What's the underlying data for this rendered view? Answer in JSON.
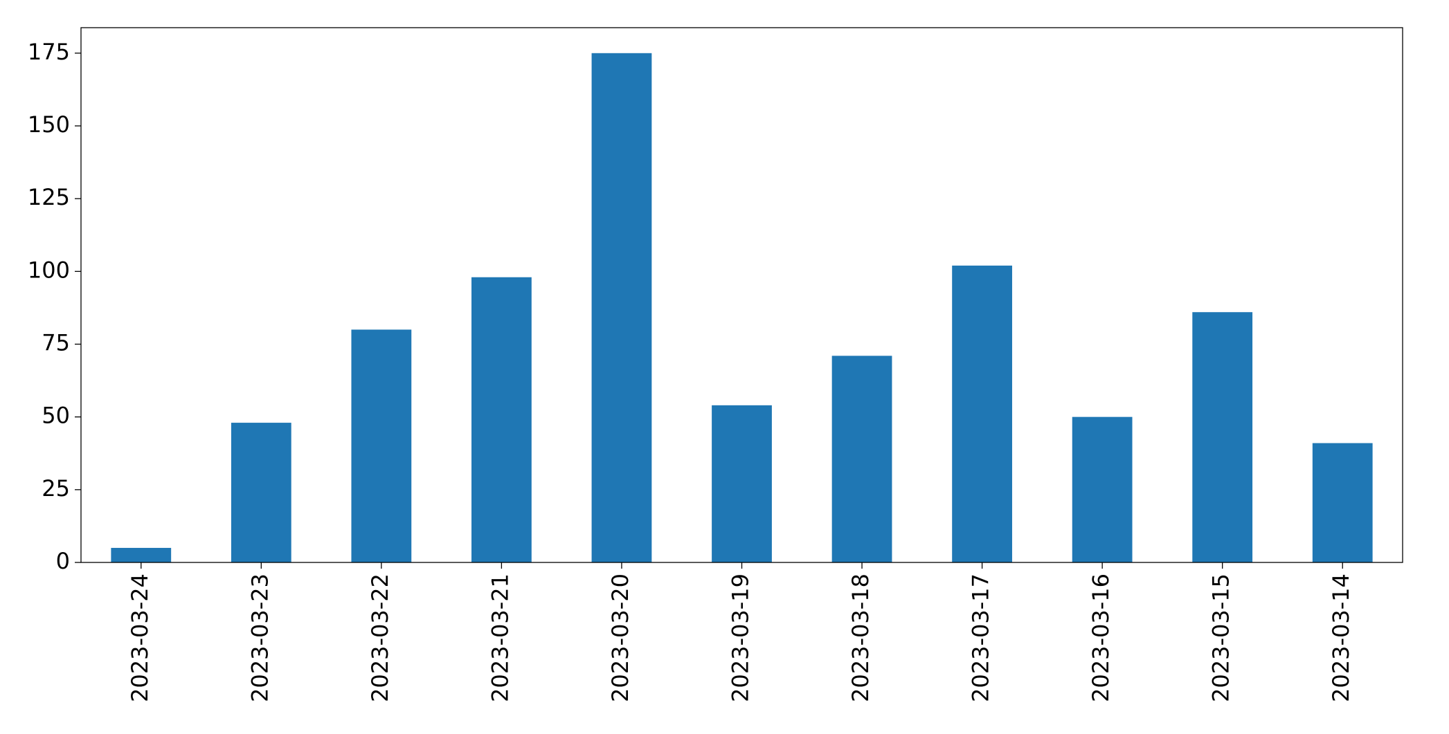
{
  "chart_data": {
    "type": "bar",
    "categories": [
      "2023-03-24",
      "2023-03-23",
      "2023-03-22",
      "2023-03-21",
      "2023-03-20",
      "2023-03-19",
      "2023-03-18",
      "2023-03-17",
      "2023-03-16",
      "2023-03-15",
      "2023-03-14"
    ],
    "values": [
      5,
      48,
      80,
      98,
      175,
      54,
      71,
      102,
      50,
      86,
      41
    ],
    "color": "#1f77b4",
    "ylim": [
      0,
      183.75
    ],
    "yticks": [
      0,
      25,
      50,
      75,
      100,
      125,
      150,
      175
    ],
    "grid": false
  }
}
